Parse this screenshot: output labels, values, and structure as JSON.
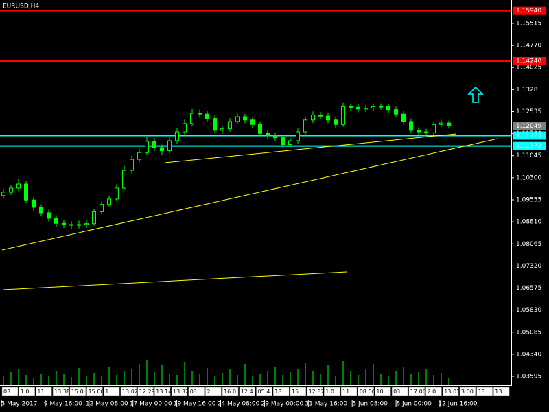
{
  "chart_data": {
    "type": "candlestick",
    "title": "EURUSD,H4",
    "ylim": [
      1.03317,
      1.16303
    ],
    "yticks": [
      1.15515,
      {
        "value": 1.1477,
        "label": "1.14770"
      },
      1.14025,
      1.1328,
      "1.13280",
      1.12535,
      {
        "value": 1.1179,
        "label": "1.11790"
      },
      1.11045,
      {
        "value": 1.103,
        "label": "1.10300"
      },
      1.09555,
      {
        "value": 1.0881,
        "label": "1.08810"
      },
      1.08065,
      {
        "value": 1.0732,
        "label": "1.07320"
      },
      1.06575,
      {
        "value": 1.0583,
        "label": "1.05830"
      },
      1.05085,
      {
        "value": 1.0434,
        "label": "1.04340"
      },
      1.03595
    ],
    "color": "#00ff00",
    "open": [
      1.097,
      1.0981,
      1.0995,
      1.10088,
      1.0955,
      1.093,
      1.09115,
      1.0893,
      1.0876,
      1.0872,
      1.087,
      1.0872,
      1.0875,
      1.0915,
      1.094,
      1.0958,
      1.0995,
      1.1055,
      1.1092,
      1.1115,
      1.1153,
      1.11317,
      1.1121,
      1.1155,
      1.1185,
      1.1213,
      1.12477,
      1.1245,
      1.123,
      1.119,
      1.1195,
      1.122,
      1.12361,
      1.1225,
      1.121,
      1.118,
      1.1172,
      1.1165,
      1.1142,
      1.1155,
      1.1185,
      1.1225,
      1.1242,
      1.1238,
      1.1225,
      1.121,
      1.127,
      1.1268,
      1.1262,
      1.1265,
      1.127,
      1.12709,
      1.126,
      1.1245,
      1.122,
      1.119,
      1.1185,
      1.1182,
      1.121,
      1.1215
    ],
    "high": [
      1.0992,
      1.1006,
      1.1025,
      1.1018,
      1.0965,
      1.094,
      1.0922,
      1.0903,
      1.0887,
      1.0883,
      1.0885,
      1.0888,
      1.0925,
      1.095,
      1.097,
      1.1008,
      1.107,
      1.1105,
      1.1128,
      1.1168,
      1.1164,
      1.1142,
      1.1166,
      1.1197,
      1.1226,
      1.1262,
      1.126,
      1.1256,
      1.124,
      1.1206,
      1.1231,
      1.1248,
      1.1246,
      1.1235,
      1.122,
      1.119,
      1.1183,
      1.1175,
      1.1165,
      1.1196,
      1.1237,
      1.1254,
      1.1252,
      1.1248,
      1.1235,
      1.1283,
      1.1281,
      1.1278,
      1.1276,
      1.128,
      1.1281,
      1.128,
      1.127,
      1.1255,
      1.123,
      1.12,
      1.1195,
      1.122,
      1.1226,
      1.1223
    ],
    "low": [
      1.096,
      1.0972,
      1.0985,
      1.0945,
      1.0918,
      1.09,
      1.0882,
      1.0864,
      1.086,
      1.0856,
      1.0859,
      1.086,
      1.0868,
      1.0906,
      1.0932,
      1.095,
      1.0988,
      1.1045,
      1.1083,
      1.1106,
      1.112,
      1.1108,
      1.1112,
      1.1146,
      1.1176,
      1.1204,
      1.1233,
      1.1219,
      1.118,
      1.1179,
      1.1186,
      1.1211,
      1.1214,
      1.1199,
      1.117,
      1.1161,
      1.1154,
      1.113,
      1.1133,
      1.1146,
      1.1176,
      1.1215,
      1.1227,
      1.1214,
      1.1199,
      1.1202,
      1.1256,
      1.1251,
      1.1252,
      1.1255,
      1.126,
      1.125,
      1.1234,
      1.1209,
      1.118,
      1.1173,
      1.1171,
      1.1175,
      1.1201,
      1.1196
    ],
    "close": [
      1.0981,
      1.0995,
      1.10088,
      1.0955,
      1.093,
      1.09115,
      1.0893,
      1.0876,
      1.0872,
      1.087,
      1.0872,
      1.0875,
      1.0915,
      1.094,
      1.0958,
      1.0995,
      1.1055,
      1.1092,
      1.1115,
      1.1153,
      1.11317,
      1.1121,
      1.1155,
      1.1185,
      1.1213,
      1.12477,
      1.1245,
      1.123,
      1.119,
      1.1195,
      1.122,
      1.12361,
      1.1225,
      1.121,
      1.118,
      1.1172,
      1.1165,
      1.1142,
      1.1155,
      1.1185,
      1.1225,
      1.1242,
      1.1238,
      1.1225,
      1.121,
      1.127,
      1.1268,
      1.1262,
      1.1265,
      1.127,
      1.12709,
      1.126,
      1.1245,
      1.122,
      1.119,
      1.1185,
      1.1182,
      1.121,
      1.1215,
      1.12049
    ],
    "volumes": [
      12,
      18,
      22,
      14,
      10,
      16,
      12,
      20,
      15,
      11,
      24,
      13,
      17,
      12,
      26,
      14,
      19,
      22,
      30,
      36,
      18,
      28,
      16,
      14,
      33,
      20,
      15,
      24,
      12,
      17,
      22,
      14,
      30,
      12,
      16,
      20,
      26,
      14,
      18,
      23,
      32,
      19,
      16,
      28,
      12,
      34,
      20,
      14,
      22,
      30,
      16,
      12,
      20,
      26,
      15,
      18,
      22,
      14,
      17,
      10
    ],
    "levels": [
      {
        "value": 1.1594,
        "label": "1.15940",
        "color": "#ff0000"
      },
      {
        "value": 1.1424,
        "label": "1.14240",
        "color": "#ff0000"
      },
      {
        "value": 1.12049,
        "label": "1.12049",
        "color": "#808080"
      },
      {
        "value": 1.11723,
        "label": "1.11723",
        "color": "#00ffff"
      },
      {
        "value": 1.11372,
        "label": "1.11372",
        "color": "#00ffff"
      }
    ],
    "trendlines": [
      {
        "from": 1.07862,
        "to": 1.11619,
        "color": "#ffff00"
      },
      {
        "from": 1.10807,
        "to": 1.11781,
        "color": "#ffff00"
      },
      {
        "from": 1.06517,
        "to": 1.0712,
        "color": "#ffff00"
      }
    ],
    "dates": [
      "5 May 2017",
      "9 May 16:00",
      "12 May 08:00",
      "17 May 00:00",
      "19 May 16:00",
      "24 May 08:00",
      "29 May 00:00",
      "31 May 16:00",
      "5 Jun 08:00",
      "8 Jun 00:00",
      "12 Jun 16:00"
    ],
    "time_marks": [
      "03:",
      "1 0",
      "11:",
      "13:38",
      "15:0",
      "15:00",
      "1",
      "13:02",
      "12:29",
      "13:14",
      "13:32",
      "03:",
      "2",
      "16:0",
      "12:4",
      "05:4",
      "18:",
      "15",
      "12:32",
      "1 0",
      "11:",
      "08:00",
      "10:",
      "03",
      "17:00",
      "2 0",
      "13:01",
      "3:00",
      "13",
      "13"
    ]
  }
}
